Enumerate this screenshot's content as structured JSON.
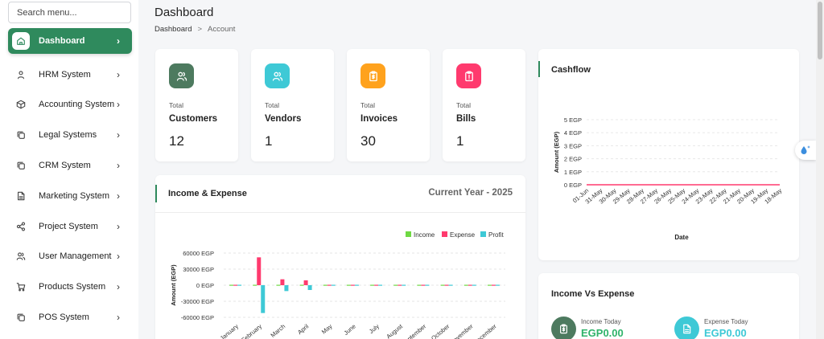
{
  "search": {
    "placeholder": "Search menu..."
  },
  "sidebar": {
    "items": [
      {
        "label": "Dashboard",
        "icon": "home-icon"
      },
      {
        "label": "HRM System",
        "icon": "user-icon"
      },
      {
        "label": "Accounting System",
        "icon": "box-icon"
      },
      {
        "label": "Legal Systems",
        "icon": "copy-icon"
      },
      {
        "label": "CRM System",
        "icon": "copy-icon"
      },
      {
        "label": "Marketing System",
        "icon": "document-icon"
      },
      {
        "label": "Project System",
        "icon": "share-icon"
      },
      {
        "label": "User Management",
        "icon": "users-icon"
      },
      {
        "label": "Products System",
        "icon": "cart-icon"
      },
      {
        "label": "POS System",
        "icon": "copy-icon"
      }
    ]
  },
  "header": {
    "title": "Dashboard",
    "breadcrumb": [
      "Dashboard",
      "Account"
    ],
    "breadcrumb_sep": ">"
  },
  "stats": [
    {
      "label_top": "Total",
      "label": "Customers",
      "value": "12",
      "color": "#4d7a5f",
      "icon": "users-icon"
    },
    {
      "label_top": "Total",
      "label": "Vendors",
      "value": "1",
      "color": "#3ec9d6",
      "icon": "users-icon"
    },
    {
      "label_top": "Total",
      "label": "Invoices",
      "value": "30",
      "color": "#ffa21d",
      "icon": "invoice-icon"
    },
    {
      "label_top": "Total",
      "label": "Bills",
      "value": "1",
      "color": "#ff3a6e",
      "icon": "bill-icon"
    }
  ],
  "income_expense": {
    "title": "Income & Expense",
    "subtitle": "Current Year - 2025"
  },
  "cashflow": {
    "title": "Cashflow"
  },
  "income_vs_expense": {
    "title": "Income Vs Expense",
    "items": [
      {
        "label": "Income Today",
        "value": "EGP0.00",
        "color": "#4d7a5f",
        "text_color": "#2fb36a",
        "icon": "invoice-icon"
      },
      {
        "label": "Expense Today",
        "value": "EGP0.00",
        "color": "#3ec9d6",
        "text_color": "#3ec9d6",
        "icon": "document-icon"
      }
    ]
  },
  "colors": {
    "accent": "#2f8a5d",
    "income": "#6fd943",
    "expense": "#ff3a6e",
    "profit": "#3ec9d6"
  },
  "chart_data": [
    {
      "type": "bar",
      "ylabel": "Amount (EGP)",
      "xlabel": "",
      "ylim": [
        -60000,
        60000
      ],
      "yticks": [
        "60000 EGP",
        "30000 EGP",
        "0 EGP",
        "-30000 EGP",
        "-60000 EGP"
      ],
      "categories": [
        "January",
        "February",
        "March",
        "April",
        "May",
        "June",
        "July",
        "August",
        "September",
        "October",
        "November",
        "December"
      ],
      "series": [
        {
          "name": "Income",
          "color": "#6fd943",
          "values": [
            0,
            0,
            0,
            0,
            0,
            0,
            0,
            0,
            0,
            0,
            0,
            0
          ]
        },
        {
          "name": "Expense",
          "color": "#ff3a6e",
          "values": [
            0,
            52000,
            11000,
            9000,
            0,
            0,
            0,
            0,
            0,
            0,
            0,
            0
          ]
        },
        {
          "name": "Profit",
          "color": "#3ec9d6",
          "values": [
            0,
            -52000,
            -11000,
            -9000,
            0,
            0,
            0,
            0,
            0,
            0,
            0,
            0
          ]
        }
      ],
      "legend": "top-right"
    },
    {
      "type": "line",
      "ylabel": "Amount (EGP)",
      "xlabel": "Date",
      "ylim": [
        0,
        5
      ],
      "yticks": [
        "5 EGP",
        "4 EGP",
        "3 EGP",
        "2 EGP",
        "1 EGP",
        "0 EGP"
      ],
      "x": [
        "01-Jun",
        "31-May",
        "30-May",
        "29-May",
        "28-May",
        "27-May",
        "26-May",
        "25-May",
        "24-May",
        "23-May",
        "22-May",
        "21-May",
        "20-May",
        "19-May",
        "18-May"
      ],
      "series": [
        {
          "color": "#ff3a6e",
          "values": [
            0,
            0,
            0,
            0,
            0,
            0,
            0,
            0,
            0,
            0,
            0,
            0,
            0,
            0,
            0
          ]
        }
      ]
    }
  ]
}
